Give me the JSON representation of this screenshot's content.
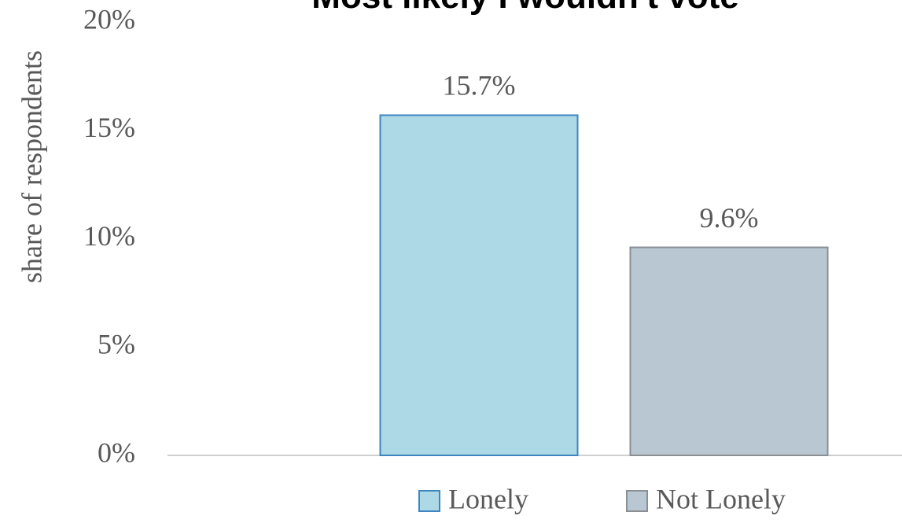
{
  "chart_data": {
    "type": "bar",
    "title": "Most likely I wouldn't vote",
    "y_label": "share of respondents",
    "categories": [
      null
    ],
    "series": [
      {
        "name": "Lonely",
        "color": "#add8e6",
        "edge_color": "#3f85c0",
        "label_color": "#3a7ebf",
        "values": [
          15.7
        ],
        "value_labels": [
          "15.7%"
        ]
      },
      {
        "name": "Not Lonely",
        "color": "#b9c7d3",
        "edge_color": "#8a8f94",
        "label_color": "#8ea3ba",
        "values": [
          9.6
        ],
        "value_labels": [
          "9.6%"
        ]
      }
    ],
    "ylim": [
      0,
      20
    ],
    "yticks": [
      {
        "value": 0,
        "label": "0%"
      },
      {
        "value": 5,
        "label": "5%"
      },
      {
        "value": 10,
        "label": "10%"
      },
      {
        "value": 15,
        "label": "15%"
      },
      {
        "value": 20,
        "label": "20%"
      }
    ],
    "grid": false,
    "legend": "bottom"
  }
}
